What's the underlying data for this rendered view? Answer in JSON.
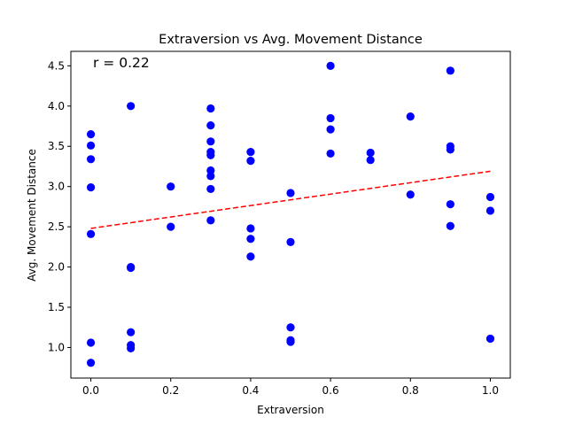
{
  "chart_data": {
    "type": "scatter",
    "title": "Extraversion vs Avg. Movement Distance",
    "xlabel": "Extraversion",
    "ylabel": "Avg. Movement Distance",
    "annotation": "r = 0.22",
    "xlim": [
      -0.05,
      1.05
    ],
    "ylim": [
      0.62,
      4.68
    ],
    "xticks": [
      0.0,
      0.2,
      0.4,
      0.6,
      0.8,
      1.0
    ],
    "xtick_labels": [
      "0.0",
      "0.2",
      "0.4",
      "0.6",
      "0.8",
      "1.0"
    ],
    "yticks": [
      1.0,
      1.5,
      2.0,
      2.5,
      3.0,
      3.5,
      4.0,
      4.5
    ],
    "ytick_labels": [
      "1.0",
      "1.5",
      "2.0",
      "2.5",
      "3.0",
      "3.5",
      "4.0",
      "4.5"
    ],
    "grid": false,
    "point_color": "#0000ff",
    "trend_color": "#ff0000",
    "series": [
      {
        "points": [
          [
            0.0,
            3.65
          ],
          [
            0.0,
            3.51
          ],
          [
            0.0,
            3.34
          ],
          [
            0.0,
            2.99
          ],
          [
            0.0,
            2.41
          ],
          [
            0.0,
            1.06
          ],
          [
            0.0,
            0.81
          ],
          [
            0.1,
            4.0
          ],
          [
            0.1,
            1.99
          ],
          [
            0.1,
            2.0
          ],
          [
            0.1,
            1.19
          ],
          [
            0.1,
            1.03
          ],
          [
            0.1,
            0.99
          ],
          [
            0.2,
            3.0
          ],
          [
            0.2,
            2.5
          ],
          [
            0.3,
            3.97
          ],
          [
            0.3,
            3.76
          ],
          [
            0.3,
            3.56
          ],
          [
            0.3,
            3.43
          ],
          [
            0.3,
            3.39
          ],
          [
            0.3,
            3.2
          ],
          [
            0.3,
            3.13
          ],
          [
            0.3,
            2.97
          ],
          [
            0.3,
            2.58
          ],
          [
            0.4,
            3.43
          ],
          [
            0.4,
            3.32
          ],
          [
            0.4,
            2.48
          ],
          [
            0.4,
            2.35
          ],
          [
            0.4,
            2.13
          ],
          [
            0.5,
            2.92
          ],
          [
            0.5,
            2.31
          ],
          [
            0.5,
            1.25
          ],
          [
            0.5,
            1.09
          ],
          [
            0.5,
            1.07
          ],
          [
            0.6,
            4.5
          ],
          [
            0.6,
            3.85
          ],
          [
            0.6,
            3.71
          ],
          [
            0.6,
            3.41
          ],
          [
            0.7,
            3.42
          ],
          [
            0.7,
            3.33
          ],
          [
            0.8,
            3.87
          ],
          [
            0.8,
            2.9
          ],
          [
            0.9,
            4.44
          ],
          [
            0.9,
            3.5
          ],
          [
            0.9,
            3.46
          ],
          [
            0.9,
            2.78
          ],
          [
            0.9,
            2.51
          ],
          [
            1.0,
            2.87
          ],
          [
            1.0,
            2.7
          ],
          [
            1.0,
            1.11
          ]
        ]
      }
    ],
    "trendline": {
      "x": [
        0.0,
        1.0
      ],
      "y": [
        2.48,
        3.19
      ],
      "style": "dashed"
    }
  }
}
